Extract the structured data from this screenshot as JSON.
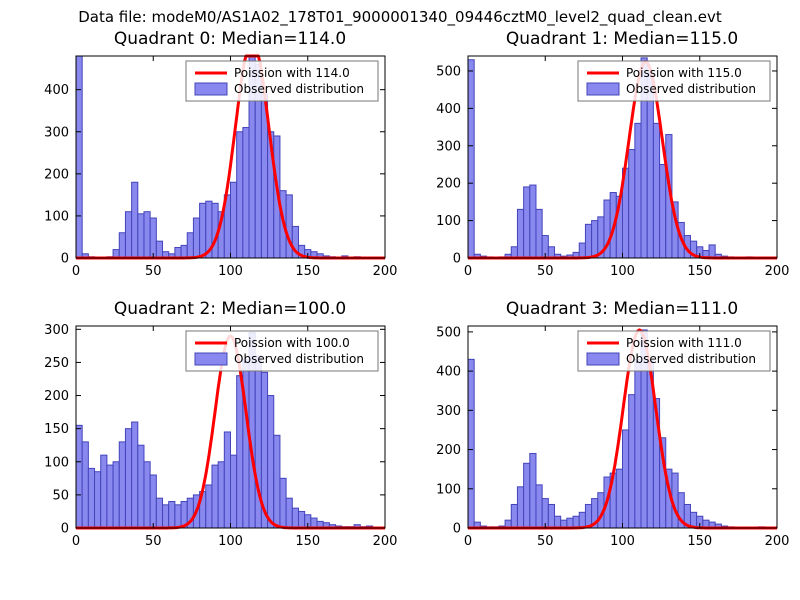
{
  "header": {
    "title": "Data file: modeM0/AS1A02_178T01_9000001340_09446cztM0_level2_quad_clean.evt"
  },
  "colors": {
    "bar_fill": "#8888ee",
    "bar_edge": "#4444bb",
    "curve": "#ff0000",
    "axes": "#000000",
    "background": "#ffffff"
  },
  "chart_data": [
    {
      "type": "bar",
      "title": "Quadrant 0: Median=114.0",
      "median": 114.0,
      "legend": [
        "Poission with 114.0",
        "Observed distribution"
      ],
      "bin_start": 0,
      "bin_width": 4,
      "counts": [
        490,
        10,
        3,
        2,
        2,
        3,
        20,
        60,
        110,
        180,
        105,
        110,
        95,
        40,
        15,
        10,
        25,
        30,
        60,
        95,
        130,
        135,
        130,
        110,
        150,
        180,
        300,
        310,
        480,
        460,
        390,
        300,
        290,
        160,
        150,
        75,
        30,
        20,
        15,
        10,
        5,
        3,
        2,
        5,
        0,
        3,
        0,
        2,
        0,
        0
      ],
      "curve": {
        "type": "poisson",
        "mu": 114.0,
        "amp": 520
      },
      "xlim": [
        0,
        200
      ],
      "ylim": [
        0,
        480
      ],
      "xticks": [
        0,
        50,
        100,
        150,
        200
      ],
      "yticks": [
        0,
        100,
        200,
        300,
        400
      ],
      "legend_position": "upper right",
      "grid": false
    },
    {
      "type": "bar",
      "title": "Quadrant 1: Median=115.0",
      "median": 115.0,
      "legend": [
        "Poission with 115.0",
        "Observed distribution"
      ],
      "bin_start": 0,
      "bin_width": 4,
      "counts": [
        530,
        10,
        5,
        3,
        2,
        3,
        10,
        30,
        130,
        190,
        195,
        130,
        60,
        30,
        10,
        5,
        8,
        15,
        40,
        90,
        100,
        110,
        155,
        175,
        165,
        240,
        290,
        360,
        535,
        495,
        360,
        250,
        330,
        150,
        95,
        60,
        45,
        30,
        20,
        35,
        10,
        5,
        3,
        2,
        0,
        3,
        0,
        2,
        0,
        0
      ],
      "curve": {
        "type": "poisson",
        "mu": 115.0,
        "amp": 525
      },
      "xlim": [
        0,
        200
      ],
      "ylim": [
        0,
        540
      ],
      "xticks": [
        0,
        50,
        100,
        150,
        200
      ],
      "yticks": [
        0,
        100,
        200,
        300,
        400,
        500
      ],
      "legend_position": "upper right",
      "grid": false
    },
    {
      "type": "bar",
      "title": "Quadrant 2: Median=100.0",
      "median": 100.0,
      "legend": [
        "Poission with 100.0",
        "Observed distribution"
      ],
      "bin_start": 0,
      "bin_width": 4,
      "counts": [
        155,
        130,
        90,
        85,
        110,
        95,
        100,
        130,
        150,
        160,
        125,
        100,
        80,
        45,
        35,
        40,
        35,
        40,
        45,
        50,
        55,
        65,
        95,
        100,
        145,
        110,
        230,
        255,
        295,
        260,
        235,
        200,
        140,
        75,
        45,
        30,
        25,
        20,
        15,
        10,
        8,
        5,
        3,
        2,
        2,
        5,
        2,
        3,
        0,
        0
      ],
      "curve": {
        "type": "poisson",
        "mu": 100.0,
        "amp": 290
      },
      "xlim": [
        0,
        200
      ],
      "ylim": [
        0,
        305
      ],
      "xticks": [
        0,
        50,
        100,
        150,
        200
      ],
      "yticks": [
        0,
        50,
        100,
        150,
        200,
        250,
        300
      ],
      "legend_position": "upper right",
      "grid": false
    },
    {
      "type": "bar",
      "title": "Quadrant 3: Median=111.0",
      "median": 111.0,
      "legend": [
        "Poission with 111.0",
        "Observed distribution"
      ],
      "bin_start": 0,
      "bin_width": 4,
      "counts": [
        430,
        15,
        5,
        3,
        3,
        5,
        20,
        60,
        105,
        165,
        190,
        110,
        75,
        60,
        30,
        20,
        25,
        30,
        40,
        60,
        75,
        90,
        130,
        140,
        150,
        250,
        340,
        430,
        505,
        430,
        330,
        230,
        150,
        140,
        90,
        60,
        40,
        30,
        20,
        15,
        10,
        5,
        3,
        2,
        0,
        2,
        0,
        3,
        0,
        0
      ],
      "curve": {
        "type": "poisson",
        "mu": 111.0,
        "amp": 505
      },
      "xlim": [
        0,
        200
      ],
      "ylim": [
        0,
        515
      ],
      "xticks": [
        0,
        50,
        100,
        150,
        200
      ],
      "yticks": [
        0,
        100,
        200,
        300,
        400,
        500
      ],
      "legend_position": "upper right",
      "grid": false
    }
  ]
}
